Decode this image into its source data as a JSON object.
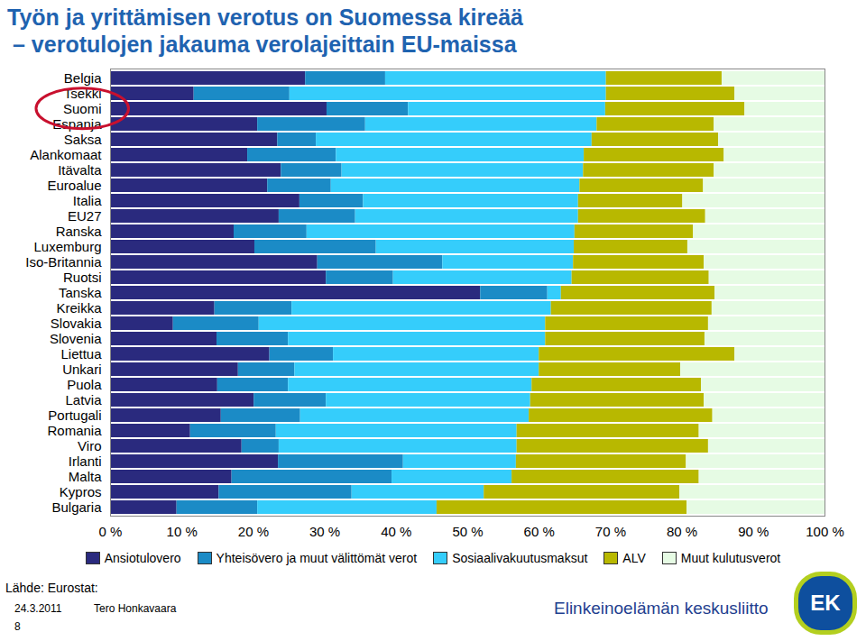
{
  "chart_data": {
    "type": "bar",
    "orientation": "horizontal",
    "stacked": true,
    "title": "Työn ja yrittämisen verotus on Suomessa kireää",
    "subtitle": "– verotulojen jakauma verolajeittain EU-maissa",
    "categories": [
      "Belgia",
      "Tsekki",
      "Suomi",
      "Espanja",
      "Saksa",
      "Alankomaat",
      "Itävalta",
      "Euroalue",
      "Italia",
      "EU27",
      "Ranska",
      "Luxemburg",
      "Iso-Britannia",
      "Ruotsi",
      "Tanska",
      "Kreikka",
      "Slovakia",
      "Slovenia",
      "Liettua",
      "Unkari",
      "Puola",
      "Latvia",
      "Portugali",
      "Romania",
      "Viro",
      "Irlanti",
      "Malta",
      "Kypros",
      "Bulgaria"
    ],
    "series": [
      {
        "name": "Ansiotulovero",
        "color": "#2a2a7e",
        "values": [
          27.3,
          11.7,
          30.3,
          20.6,
          23.4,
          19.2,
          23.9,
          22.0,
          26.5,
          23.6,
          17.3,
          20.2,
          29.0,
          30.2,
          51.8,
          14.6,
          8.8,
          14.9,
          22.3,
          17.9,
          15.0,
          20.1,
          15.5,
          11.2,
          18.4,
          23.5,
          17.0,
          15.2,
          9.3
        ]
      },
      {
        "name": "Yhteisövero ja muut välittömät verot",
        "color": "#1b8bc6",
        "values": [
          11.2,
          13.4,
          11.4,
          15.1,
          5.4,
          12.4,
          8.5,
          8.9,
          8.9,
          10.7,
          10.2,
          17.0,
          17.5,
          9.4,
          9.4,
          10.8,
          12.0,
          10.0,
          8.9,
          7.9,
          9.9,
          10.1,
          11.1,
          12.0,
          5.2,
          17.5,
          22.4,
          18.6,
          11.3
        ]
      },
      {
        "name": "Sosiaalivakuutusmaksut",
        "color": "#35cdfb",
        "values": [
          30.9,
          44.3,
          27.6,
          32.4,
          38.6,
          34.7,
          33.8,
          34.8,
          30.1,
          31.2,
          37.5,
          27.7,
          18.3,
          25.0,
          1.9,
          36.3,
          40.1,
          36.0,
          28.8,
          34.2,
          34.1,
          28.6,
          32.0,
          33.7,
          33.3,
          15.8,
          16.8,
          18.5,
          25.1
        ]
      },
      {
        "name": "ALV",
        "color": "#b8b800",
        "values": [
          16.2,
          18.0,
          19.5,
          16.4,
          17.7,
          19.6,
          18.3,
          17.3,
          14.6,
          17.8,
          16.6,
          15.9,
          18.3,
          19.2,
          21.5,
          22.5,
          22.8,
          22.3,
          27.4,
          19.8,
          23.7,
          24.3,
          25.7,
          25.5,
          26.8,
          23.8,
          26.2,
          27.4,
          35.0
        ]
      },
      {
        "name": "Muut kulutusverot",
        "color": "#e6fbe4",
        "values": [
          14.4,
          12.6,
          11.2,
          15.5,
          14.9,
          14.1,
          15.5,
          17.0,
          19.9,
          16.7,
          18.4,
          19.2,
          16.9,
          16.2,
          15.4,
          15.8,
          16.3,
          16.8,
          12.6,
          20.2,
          17.3,
          16.9,
          15.7,
          17.6,
          16.3,
          19.4,
          17.6,
          20.3,
          19.3
        ]
      }
    ],
    "xlim": [
      0,
      100
    ],
    "xticks": [
      {
        "value": 0,
        "label": "0 %"
      },
      {
        "value": 10,
        "label": "10 %"
      },
      {
        "value": 20,
        "label": "20 %"
      },
      {
        "value": 30,
        "label": "30 %"
      },
      {
        "value": 40,
        "label": "40 %"
      },
      {
        "value": 50,
        "label": "50 %"
      },
      {
        "value": 60,
        "label": "60 %"
      },
      {
        "value": 70,
        "label": "70 %"
      },
      {
        "value": 80,
        "label": "80 %"
      },
      {
        "value": 90,
        "label": "90 %"
      },
      {
        "value": 100,
        "label": "100 %"
      }
    ],
    "grid": false,
    "legend": "bottom",
    "annotations": [
      "Lähde: Eurostat:",
      "24.3.2011",
      "Tero Honkavaara",
      "8",
      "Elinkeinoelämän keskusliitto",
      "EK"
    ]
  }
}
